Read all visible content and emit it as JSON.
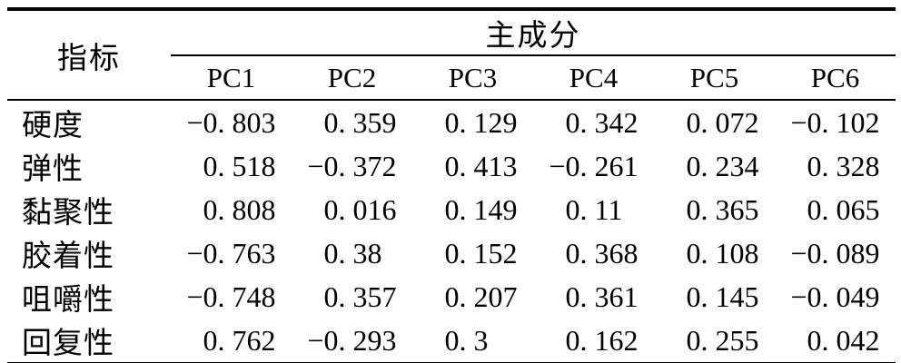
{
  "table": {
    "indicator_header": "指标",
    "group_header": "主成分",
    "pc_columns": [
      "PC1",
      "PC2",
      "PC3",
      "PC4",
      "PC5",
      "PC6"
    ],
    "rows": [
      {
        "label": "硬度",
        "values": [
          "−0. 803",
          "0. 359",
          "0. 129",
          "0. 342",
          "0. 072",
          "−0. 102"
        ]
      },
      {
        "label": "弹性",
        "values": [
          "0. 518",
          "−0. 372",
          "0. 413",
          "−0. 261",
          "0. 234",
          "0. 328"
        ]
      },
      {
        "label": "黏聚性",
        "values": [
          "0. 808",
          "0. 016",
          "0. 149",
          "0. 11",
          "0. 365",
          "0. 065"
        ]
      },
      {
        "label": "胶着性",
        "values": [
          "−0. 763",
          "0. 38",
          "0. 152",
          "0. 368",
          "0. 108",
          "−0. 089"
        ]
      },
      {
        "label": "咀嚼性",
        "values": [
          "−0. 748",
          "0. 357",
          "0. 207",
          "0. 361",
          "0. 145",
          "−0. 049"
        ]
      },
      {
        "label": "回复性",
        "values": [
          "0. 762",
          "−0. 293",
          "0. 3",
          "0. 162",
          "0. 255",
          "0. 042"
        ]
      }
    ]
  },
  "chart_data": {
    "type": "table",
    "title": "",
    "columns": [
      "指标",
      "PC1",
      "PC2",
      "PC3",
      "PC4",
      "PC5",
      "PC6"
    ],
    "rows": [
      [
        "硬度",
        -0.803,
        0.359,
        0.129,
        0.342,
        0.072,
        -0.102
      ],
      [
        "弹性",
        0.518,
        -0.372,
        0.413,
        -0.261,
        0.234,
        0.328
      ],
      [
        "黏聚性",
        0.808,
        0.016,
        0.149,
        0.11,
        0.365,
        0.065
      ],
      [
        "胶着性",
        -0.763,
        0.38,
        0.152,
        0.368,
        0.108,
        -0.089
      ],
      [
        "咀嚼性",
        -0.748,
        0.357,
        0.207,
        0.361,
        0.145,
        -0.049
      ],
      [
        "回复性",
        0.762,
        -0.293,
        0.3,
        0.162,
        0.255,
        0.042
      ]
    ]
  }
}
